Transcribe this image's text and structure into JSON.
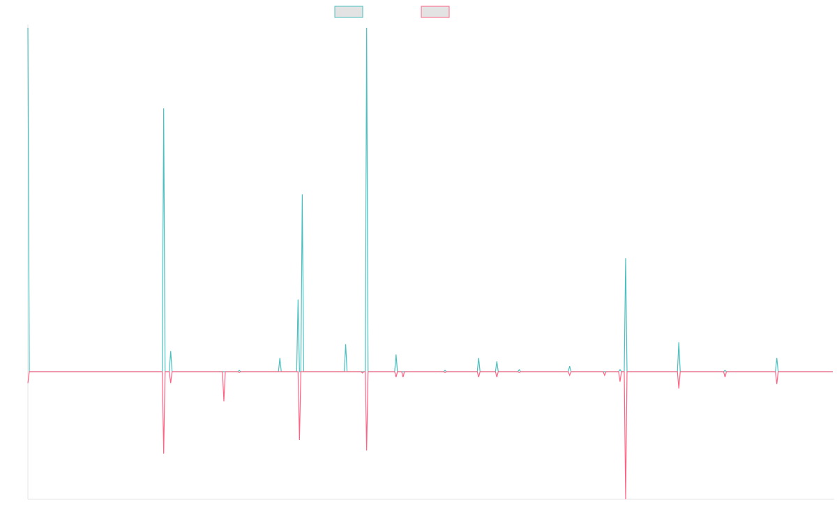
{
  "chart_data": {
    "type": "line",
    "title": "",
    "xlabel": "",
    "ylabel": "",
    "x": [
      0,
      1,
      2,
      3,
      4,
      5,
      6,
      7,
      8,
      9,
      10,
      11,
      12,
      13,
      14,
      15,
      16,
      17,
      18,
      19,
      20,
      21,
      22,
      23,
      24,
      25,
      26,
      27,
      28,
      29,
      30,
      31,
      32,
      33,
      34,
      35,
      36,
      37,
      38,
      39,
      40,
      41,
      42,
      43,
      44,
      45,
      46,
      47,
      48,
      49,
      50,
      51,
      52,
      53,
      54,
      55,
      56,
      57,
      58,
      59,
      60,
      61,
      62,
      63,
      64,
      65,
      66,
      67,
      68,
      69,
      70,
      71,
      72,
      73,
      74,
      75,
      76,
      77,
      78,
      79,
      80,
      81,
      82,
      83,
      84,
      85,
      86,
      87,
      88,
      89,
      90,
      91,
      92,
      93,
      94,
      95,
      96,
      97,
      98,
      99,
      100,
      101,
      102,
      103,
      104,
      105,
      106,
      107,
      108,
      109,
      110,
      111,
      112,
      113,
      114,
      115,
      116,
      117,
      118,
      119,
      120,
      121,
      122,
      123,
      124,
      125,
      126,
      127,
      128,
      129,
      130,
      131,
      132,
      133,
      134,
      135,
      136,
      137,
      138,
      139,
      140,
      141,
      142,
      143,
      144,
      145,
      146,
      147,
      148,
      149,
      150,
      151,
      152,
      153,
      154,
      155,
      156,
      157,
      158,
      159,
      160,
      161,
      162,
      163,
      164,
      165,
      166,
      167,
      168,
      169,
      170,
      171,
      172,
      173,
      174,
      175,
      176,
      177,
      178,
      179,
      180,
      181,
      182,
      183,
      184,
      185,
      186,
      187,
      188,
      189,
      190,
      191,
      192,
      193,
      194,
      195,
      196,
      197,
      198,
      199,
      200,
      201,
      202,
      203,
      204,
      205,
      206,
      207,
      208,
      209,
      210,
      211,
      212,
      213,
      214,
      215,
      216,
      217,
      218,
      219,
      220,
      221,
      222,
      223,
      224,
      225,
      226,
      227,
      228,
      229,
      230,
      231,
      232,
      233,
      234,
      235,
      236,
      237,
      238,
      239,
      240,
      241,
      242,
      243,
      244,
      245,
      246,
      247,
      248,
      249,
      250,
      251,
      252,
      253,
      254,
      255,
      256,
      257,
      258,
      259,
      260,
      261,
      262,
      263,
      264,
      265,
      266,
      267,
      268,
      269,
      270,
      271,
      272,
      273,
      274,
      275,
      276,
      277,
      278,
      279,
      280,
      281,
      282,
      283,
      284,
      285,
      286,
      287,
      288,
      289,
      290,
      291,
      292,
      293,
      294,
      295,
      296,
      297,
      298,
      299,
      300,
      301,
      302,
      303,
      304,
      305,
      306,
      307,
      308,
      309,
      310,
      311,
      312,
      313,
      314,
      315,
      316,
      317,
      318,
      319,
      320,
      321,
      322,
      323,
      324,
      325,
      326,
      327,
      328,
      329,
      330,
      331,
      332,
      333,
      334,
      335,
      336,
      337,
      338,
      339,
      340,
      341,
      342,
      343,
      344,
      345,
      346,
      347,
      348,
      349,
      350,
      351,
      352,
      353,
      354,
      355,
      356,
      357,
      358,
      359,
      360,
      361,
      362,
      363,
      364,
      365,
      366,
      367,
      368,
      369,
      370,
      371,
      372,
      373,
      374,
      375,
      376,
      377,
      378,
      379,
      380,
      381,
      382,
      383,
      384,
      385,
      386,
      387,
      388,
      389,
      390,
      391,
      392,
      393,
      394,
      395,
      396,
      397,
      398,
      399,
      400,
      401,
      402,
      403,
      404,
      405,
      406,
      407,
      408,
      409,
      410,
      411,
      412,
      413,
      414,
      415,
      416,
      417,
      418,
      419,
      420,
      421,
      422,
      423,
      424,
      425,
      426,
      427,
      428,
      429,
      430,
      431,
      432,
      433,
      434,
      435,
      436,
      437,
      438,
      439,
      440,
      441,
      442,
      443,
      444,
      445,
      446,
      447,
      448,
      449,
      450,
      451,
      452,
      453,
      454,
      455,
      456,
      457,
      458,
      459,
      460,
      461,
      462,
      463,
      464,
      465,
      466,
      467,
      468,
      469,
      470,
      471,
      472,
      473,
      474,
      475,
      476,
      477,
      478,
      479,
      480,
      481,
      482,
      483,
      484,
      485,
      486,
      487,
      488,
      489,
      490,
      491,
      492,
      493,
      494,
      495,
      496,
      497,
      498,
      499,
      500,
      501,
      502,
      503,
      504,
      505,
      506,
      507,
      508,
      509,
      510,
      511,
      512,
      513,
      514,
      515,
      516,
      517,
      518,
      519,
      520,
      521,
      522,
      523,
      524,
      525,
      526,
      527,
      528,
      529,
      530,
      531,
      532,
      533,
      534,
      535,
      536,
      537,
      538,
      539,
      540,
      541,
      542,
      543,
      544,
      545,
      546,
      547,
      548,
      549,
      550,
      551,
      552,
      553,
      554,
      555,
      556,
      557,
      558,
      559,
      560,
      561,
      562,
      563,
      564,
      565,
      566,
      567,
      568,
      569,
      570,
      571,
      572,
      573,
      574,
      575
    ],
    "series": [
      {
        "name": "",
        "color": "#4bc0c0",
        "fill": "#e3e3e3",
        "points": [
          [
            0,
            500
          ],
          [
            1,
            0
          ],
          [
            96,
            0
          ],
          [
            97,
            383
          ],
          [
            98,
            0
          ],
          [
            101,
            0
          ],
          [
            102,
            30
          ],
          [
            103,
            0
          ],
          [
            150,
            0
          ],
          [
            151,
            2
          ],
          [
            152,
            0
          ],
          [
            179,
            0
          ],
          [
            180,
            20
          ],
          [
            181,
            0
          ],
          [
            192,
            0
          ],
          [
            193,
            105
          ],
          [
            194,
            0
          ],
          [
            195,
            0
          ],
          [
            196,
            258
          ],
          [
            197,
            0
          ],
          [
            226,
            0
          ],
          [
            227,
            40
          ],
          [
            228,
            0
          ],
          [
            238,
            0
          ],
          [
            239,
            0
          ],
          [
            241,
            0
          ],
          [
            242,
            500
          ],
          [
            243,
            0
          ],
          [
            262,
            0
          ],
          [
            263,
            25
          ],
          [
            264,
            0
          ],
          [
            267,
            0
          ],
          [
            268,
            0
          ],
          [
            269,
            0
          ],
          [
            297,
            0
          ],
          [
            298,
            2
          ],
          [
            299,
            0
          ],
          [
            321,
            0
          ],
          [
            322,
            20
          ],
          [
            323,
            0
          ],
          [
            334,
            0
          ],
          [
            335,
            15
          ],
          [
            336,
            0
          ],
          [
            350,
            0
          ],
          [
            351,
            3
          ],
          [
            352,
            0
          ],
          [
            386,
            0
          ],
          [
            387,
            8
          ],
          [
            388,
            0
          ],
          [
            411,
            0
          ],
          [
            412,
            0
          ],
          [
            413,
            0
          ],
          [
            422,
            0
          ],
          [
            423,
            3
          ],
          [
            424,
            0
          ],
          [
            426,
            0
          ],
          [
            427,
            165
          ],
          [
            428,
            0
          ],
          [
            464,
            0
          ],
          [
            465,
            43
          ],
          [
            466,
            0
          ],
          [
            497,
            0
          ],
          [
            498,
            2
          ],
          [
            499,
            0
          ],
          [
            534,
            0
          ],
          [
            535,
            20
          ],
          [
            536,
            0
          ],
          [
            575,
            0
          ]
        ]
      },
      {
        "name": "",
        "color": "#ff6384",
        "fill": "#e3e3e3",
        "points": [
          [
            0,
            -25
          ],
          [
            1,
            0
          ],
          [
            96,
            0
          ],
          [
            97,
            -180
          ],
          [
            98,
            0
          ],
          [
            101,
            0
          ],
          [
            102,
            -25
          ],
          [
            103,
            0
          ],
          [
            139,
            0
          ],
          [
            140,
            -65
          ],
          [
            141,
            0
          ],
          [
            150,
            0
          ],
          [
            151,
            -2
          ],
          [
            152,
            0
          ],
          [
            193,
            0
          ],
          [
            194,
            -150
          ],
          [
            195,
            0
          ],
          [
            238,
            0
          ],
          [
            239,
            -3
          ],
          [
            240,
            0
          ],
          [
            241,
            0
          ],
          [
            242,
            -173
          ],
          [
            243,
            0
          ],
          [
            262,
            0
          ],
          [
            263,
            -12
          ],
          [
            264,
            0
          ],
          [
            267,
            0
          ],
          [
            268,
            -12
          ],
          [
            269,
            0
          ],
          [
            297,
            0
          ],
          [
            298,
            -2
          ],
          [
            299,
            0
          ],
          [
            321,
            0
          ],
          [
            322,
            -12
          ],
          [
            323,
            0
          ],
          [
            334,
            0
          ],
          [
            335,
            -12
          ],
          [
            336,
            0
          ],
          [
            350,
            0
          ],
          [
            351,
            -2
          ],
          [
            352,
            0
          ],
          [
            386,
            0
          ],
          [
            387,
            -8
          ],
          [
            388,
            0
          ],
          [
            411,
            0
          ],
          [
            412,
            -8
          ],
          [
            413,
            0
          ],
          [
            422,
            0
          ],
          [
            423,
            -22
          ],
          [
            424,
            0
          ],
          [
            426,
            0
          ],
          [
            427,
            -280
          ],
          [
            428,
            0
          ],
          [
            464,
            0
          ],
          [
            465,
            -37
          ],
          [
            466,
            0
          ],
          [
            497,
            0
          ],
          [
            498,
            -12
          ],
          [
            499,
            0
          ],
          [
            534,
            0
          ],
          [
            535,
            -27
          ],
          [
            536,
            0
          ],
          [
            575,
            0
          ]
        ]
      }
    ],
    "ylim": [
      -280,
      505
    ],
    "xlim": [
      0,
      576
    ],
    "grid": false,
    "legend": "top-center"
  }
}
